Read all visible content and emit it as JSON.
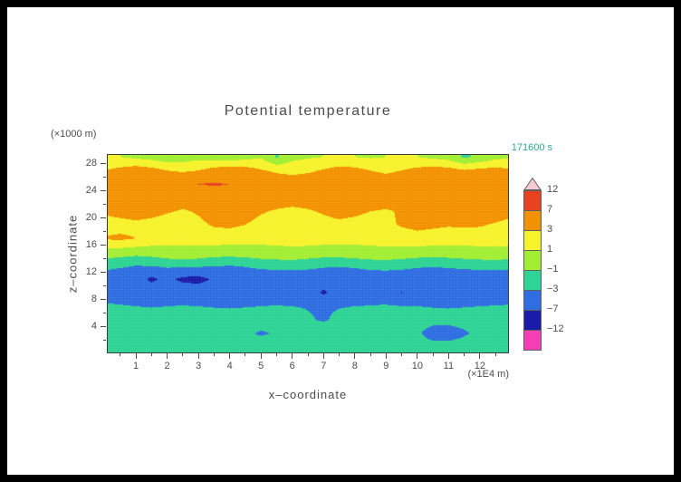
{
  "page": {
    "frame_color": "#000000",
    "paper_color": "#ffffff",
    "text_color": "#4c4c4c",
    "time_color": "#2fa89a"
  },
  "title": "Potential temperature",
  "time_label": "171600 s",
  "axes": {
    "y_unit": "(×1000 m)",
    "x_unit": "(×1E4 m)",
    "y_label": "z–coordinate",
    "x_label": "x–coordinate"
  },
  "colorbar": {
    "labels_top_to_bottom": [
      "12",
      "7",
      "3",
      "1",
      "−1",
      "−3",
      "−7",
      "−12"
    ],
    "colors_top_to_bottom": [
      "#e8411f",
      "#f29200",
      "#f6f32b",
      "#a2ee32",
      "#2ed495",
      "#2e6de2",
      "#1b1baa",
      "#f63fb5"
    ],
    "arrow_color": "#f6c9d3",
    "outline": "#606060"
  },
  "chart_data": {
    "type": "heatmap",
    "title": "Potential temperature",
    "xlabel": "x-coordinate (×1E4 m)",
    "ylabel": "z-coordinate (×1000 m)",
    "time": "171600 s",
    "x_range": [
      0.1,
      12.9
    ],
    "z_range": [
      0.2,
      29.3
    ],
    "x_ticks_major": [
      1,
      2,
      3,
      4,
      5,
      6,
      7,
      8,
      9,
      10,
      11,
      12
    ],
    "x_ticks_minor_step": 0.5,
    "z_ticks_major": [
      4,
      8,
      12,
      16,
      20,
      24,
      28
    ],
    "z_ticks_minor_step": 2,
    "levels": [
      -12,
      -7,
      -3,
      -1,
      1,
      3,
      7,
      12
    ],
    "band_colors": [
      "#f63fb5",
      "#1b1baa",
      "#2e6de2",
      "#2ed495",
      "#a2ee32",
      "#f6f32b",
      "#f29200",
      "#e8411f",
      "#f6c9d3"
    ],
    "grid_x": [
      0,
      0.5,
      1,
      1.5,
      2,
      2.5,
      3,
      3.5,
      4,
      4.5,
      5,
      5.5,
      6,
      6.5,
      7,
      7.5,
      8,
      8.5,
      9,
      9.5,
      10,
      10.5,
      11,
      11.5,
      12,
      12.5,
      13
    ],
    "grid_z": [
      1,
      3,
      5,
      7,
      9,
      11,
      13,
      15,
      17,
      19,
      21,
      23,
      25,
      27,
      29
    ],
    "values": [
      [
        -1.6,
        -1.7,
        -1.8,
        -1.7,
        -1.6,
        -1.5,
        -1.6,
        -1.8,
        -1.9,
        -1.8,
        -1.6,
        -1.5,
        -1.4,
        -1.5,
        -1.7,
        -1.8,
        -1.7,
        -1.6,
        -1.5,
        -1.6,
        -1.8,
        -1.9,
        -1.8,
        -1.6,
        -1.5,
        -1.6,
        -1.7
      ],
      [
        -1.7,
        -1.8,
        -1.9,
        -1.8,
        -1.7,
        -1.6,
        -1.7,
        -1.9,
        -2.0,
        -2.6,
        -3.3,
        -2.8,
        -2.0,
        -1.8,
        -1.7,
        -1.8,
        -1.9,
        -1.8,
        -1.7,
        -1.8,
        -2.6,
        -4.2,
        -4.5,
        -3.4,
        -2.2,
        -1.9,
        -1.8
      ],
      [
        -1.8,
        -1.9,
        -2.0,
        -2.1,
        -2.0,
        -1.9,
        -2.0,
        -2.1,
        -2.0,
        -1.9,
        -1.8,
        -1.9,
        -2.2,
        -2.8,
        -3.2,
        -2.6,
        -2.0,
        -1.9,
        -1.8,
        -1.9,
        -2.0,
        -2.1,
        -2.0,
        -1.9,
        -1.8,
        -1.9,
        -2.0
      ],
      [
        -2.6,
        -2.8,
        -3.0,
        -3.1,
        -3.0,
        -2.9,
        -3.0,
        -3.1,
        -3.2,
        -3.1,
        -3.0,
        -2.9,
        -3.0,
        -3.1,
        -3.2,
        -3.1,
        -3.0,
        -2.9,
        -2.8,
        -2.9,
        -3.0,
        -3.1,
        -3.2,
        -3.1,
        -3.0,
        -2.9,
        -2.8
      ],
      [
        -4.2,
        -4.4,
        -4.5,
        -4.4,
        -4.3,
        -4.4,
        -4.5,
        -4.6,
        -4.5,
        -4.4,
        -4.3,
        -4.4,
        -4.5,
        -4.8,
        -7.6,
        -5.2,
        -4.6,
        -4.4,
        -4.3,
        -7.2,
        -4.6,
        -4.4,
        -4.3,
        -4.4,
        -4.5,
        -4.4,
        -4.3
      ],
      [
        -4.5,
        -4.7,
        -5.0,
        -7.8,
        -6.0,
        -7.9,
        -8.2,
        -6.5,
        -4.9,
        -4.7,
        -4.6,
        -4.7,
        -4.8,
        -4.9,
        -5.0,
        -4.8,
        -4.7,
        -4.6,
        -4.7,
        -4.8,
        -4.9,
        -4.8,
        -4.7,
        -4.6,
        -4.7,
        -4.8,
        -4.7
      ],
      [
        -2.2,
        -2.6,
        -3.0,
        -2.8,
        -2.4,
        -2.2,
        -2.4,
        -2.8,
        -3.0,
        -2.8,
        -2.4,
        -2.2,
        -2.0,
        -2.2,
        -2.6,
        -2.8,
        -2.6,
        -2.2,
        -2.0,
        -2.2,
        -2.6,
        -2.8,
        -2.6,
        -2.4,
        -2.2,
        -2.0,
        -2.2
      ],
      [
        0.2,
        0.0,
        -0.2,
        0.0,
        0.3,
        0.5,
        0.3,
        0.1,
        0.0,
        0.2,
        0.4,
        0.5,
        0.4,
        0.2,
        0.1,
        0.2,
        0.4,
        0.5,
        0.4,
        0.3,
        0.2,
        0.1,
        0.2,
        0.4,
        0.5,
        0.4,
        0.3
      ],
      [
        3.2,
        3.4,
        3.0,
        2.2,
        1.8,
        1.6,
        1.8,
        2.0,
        1.8,
        1.6,
        1.5,
        1.6,
        1.8,
        2.0,
        1.8,
        1.6,
        1.5,
        1.6,
        1.8,
        2.0,
        2.2,
        2.0,
        1.8,
        1.6,
        1.8,
        2.0,
        1.8
      ],
      [
        2.0,
        2.2,
        2.4,
        2.2,
        2.0,
        2.2,
        2.6,
        3.2,
        3.4,
        3.0,
        2.4,
        2.2,
        2.0,
        2.2,
        2.4,
        2.6,
        2.4,
        2.2,
        2.6,
        3.2,
        3.6,
        3.4,
        3.2,
        3.4,
        3.2,
        2.8,
        2.4
      ],
      [
        3.4,
        3.8,
        4.2,
        3.8,
        3.2,
        2.8,
        3.2,
        3.8,
        4.2,
        3.8,
        3.2,
        2.8,
        2.6,
        2.8,
        3.2,
        3.6,
        3.4,
        3.0,
        2.8,
        3.2,
        3.8,
        4.0,
        3.8,
        3.4,
        3.8,
        4.0,
        3.6
      ],
      [
        4.2,
        4.8,
        5.4,
        5.0,
        4.4,
        4.0,
        4.4,
        5.0,
        5.4,
        5.0,
        4.4,
        4.0,
        3.8,
        4.0,
        4.4,
        4.8,
        4.6,
        4.2,
        4.0,
        4.4,
        5.0,
        5.2,
        5.0,
        4.6,
        5.0,
        5.2,
        4.8
      ],
      [
        5.0,
        5.8,
        6.4,
        6.2,
        5.6,
        6.2,
        7.1,
        7.3,
        7.0,
        6.0,
        5.2,
        4.6,
        4.2,
        4.6,
        5.2,
        5.6,
        5.2,
        4.6,
        4.2,
        4.8,
        5.6,
        6.2,
        6.0,
        5.4,
        5.8,
        6.0,
        5.2
      ],
      [
        3.0,
        3.6,
        4.2,
        3.8,
        3.0,
        2.6,
        3.0,
        3.8,
        4.4,
        4.0,
        3.2,
        2.6,
        2.4,
        2.6,
        3.2,
        3.8,
        3.6,
        3.0,
        2.6,
        3.0,
        3.6,
        4.0,
        3.8,
        3.2,
        3.6,
        3.8,
        3.2
      ],
      [
        1.2,
        1.0,
        0.6,
        0.2,
        -0.3,
        0.0,
        0.4,
        0.2,
        -0.2,
        0.3,
        0.8,
        -1.2,
        0.4,
        0.8,
        1.0,
        1.2,
        1.0,
        0.8,
        1.0,
        1.2,
        1.0,
        0.6,
        0.2,
        -1.3,
        -0.6,
        0.4,
        0.8
      ]
    ]
  }
}
